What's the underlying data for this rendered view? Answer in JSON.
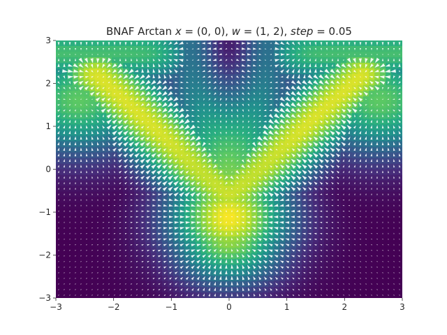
{
  "chart_data": {
    "type": "heatmap",
    "title": "BNAF Arctan x = (0, 0), w = (1, 2), step = 0.05",
    "title_parts": {
      "name": "BNAF Arctan ",
      "x_var": "x",
      "x_eq": " = (0, 0), ",
      "w_var": "w",
      "w_eq": " = (1, 2), ",
      "step_var": "step",
      "step_eq": " = 0.05"
    },
    "xlabel": "",
    "ylabel": "",
    "xlim": [
      -3,
      3
    ],
    "ylim": [
      -3,
      3
    ],
    "x_ticks": [
      -3,
      -2,
      -1,
      0,
      1,
      2,
      3
    ],
    "y_ticks": [
      -3,
      -2,
      -1,
      0,
      1,
      2,
      3
    ],
    "x_tick_labels": [
      "−3",
      "−2",
      "−1",
      "0",
      "1",
      "2",
      "3"
    ],
    "y_tick_labels": [
      "−3",
      "−2",
      "−1",
      "0",
      "1",
      "2",
      "3"
    ],
    "colormap": "viridis",
    "grid": false,
    "overlay": "quiver vector field (white arrows)",
    "density_features": [
      {
        "name": "left-arm",
        "x": -1.3,
        "y": 1.0,
        "value": 0.95
      },
      {
        "name": "right-arm",
        "x": 1.3,
        "y": 1.0,
        "value": 0.95
      },
      {
        "name": "center-peak",
        "x": 0.0,
        "y": -1.1,
        "value": 1.0
      },
      {
        "name": "top-center-trough",
        "x": 0.0,
        "y": 2.8,
        "value": 0.0
      },
      {
        "name": "bottom-left-trough",
        "x": -2.8,
        "y": -2.5,
        "value": 0.0
      },
      {
        "name": "bottom-right-trough",
        "x": 2.8,
        "y": -2.5,
        "value": 0.0
      }
    ]
  }
}
